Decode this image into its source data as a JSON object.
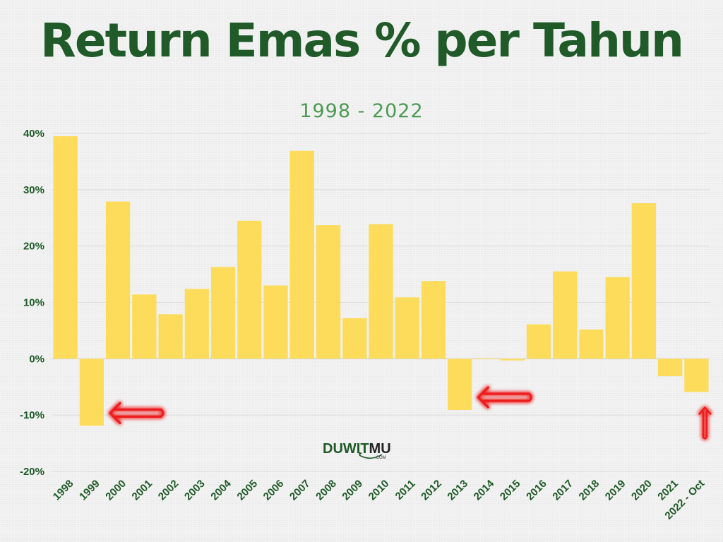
{
  "title": "Return Emas % per Tahun",
  "subtitle": "1998 - 2022",
  "logo": {
    "text_part1": "DUWIT",
    "text_part2": "MU",
    "sub": ".COM"
  },
  "colors": {
    "title": "#1f5a28",
    "subtitle": "#4a9a52",
    "bar": "#fddc5c",
    "arrow": "#ee1c1c"
  },
  "chart_data": {
    "type": "bar",
    "title": "Return Emas % per Tahun",
    "subtitle": "1998 - 2022",
    "xlabel": "",
    "ylabel": "",
    "ylim": [
      -20,
      40
    ],
    "yticks": [
      -20,
      -10,
      0,
      10,
      20,
      30,
      40
    ],
    "ytick_labels": [
      "-20%",
      "-10%",
      "0%",
      "10%",
      "20%",
      "30%",
      "40%"
    ],
    "grid": true,
    "categories": [
      "1998",
      "1999",
      "2000",
      "2001",
      "2002",
      "2003",
      "2004",
      "2005",
      "2006",
      "2007",
      "2008",
      "2009",
      "2010",
      "2011",
      "2012",
      "2013",
      "2014",
      "2015",
      "2016",
      "2017",
      "2018",
      "2019",
      "2020",
      "2021",
      "2022 - Oct"
    ],
    "values": [
      39.5,
      -11.9,
      27.9,
      11.4,
      7.9,
      12.4,
      16.3,
      24.5,
      13.0,
      36.9,
      23.7,
      7.2,
      23.9,
      10.9,
      13.8,
      -9.1,
      0.1,
      -0.3,
      6.1,
      15.5,
      5.2,
      14.5,
      27.6,
      -3.1,
      -5.9
    ],
    "annotations": [
      {
        "type": "arrow-left",
        "category": "1999"
      },
      {
        "type": "arrow-left",
        "category": "2013"
      },
      {
        "type": "arrow-up",
        "category": "2022 - Oct"
      }
    ]
  }
}
